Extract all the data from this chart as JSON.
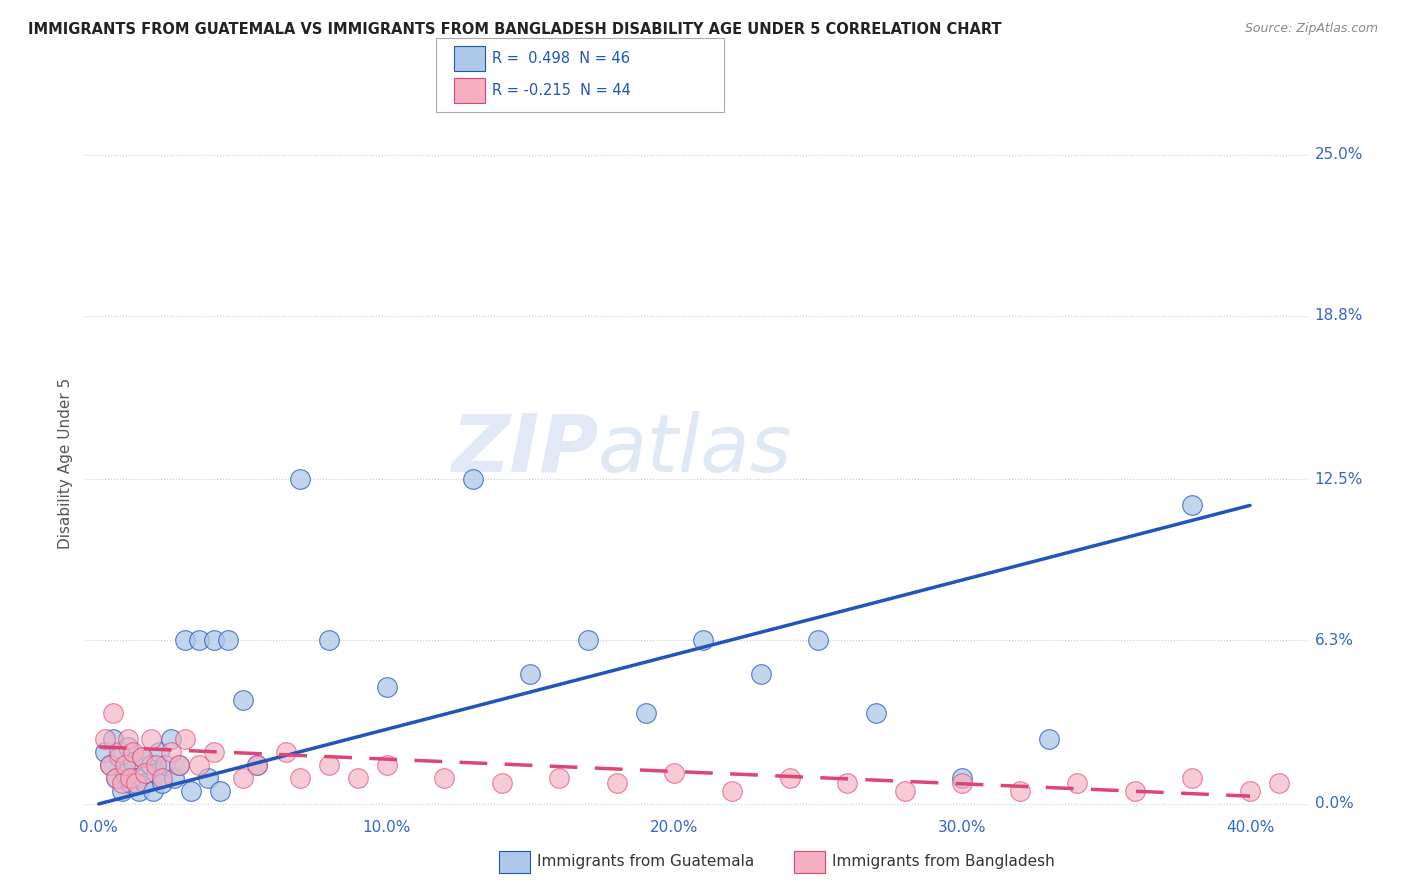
{
  "title": "IMMIGRANTS FROM GUATEMALA VS IMMIGRANTS FROM BANGLADESH DISABILITY AGE UNDER 5 CORRELATION CHART",
  "source": "Source: ZipAtlas.com",
  "ylabel": "Disability Age Under 5",
  "xlabel_ticks": [
    "0.0%",
    "10.0%",
    "20.0%",
    "30.0%",
    "40.0%"
  ],
  "xlabel_vals": [
    0.0,
    0.1,
    0.2,
    0.3,
    0.4
  ],
  "ylabel_ticks_right": [
    "0.0%",
    "6.3%",
    "12.5%",
    "18.8%",
    "25.0%"
  ],
  "ylabel_vals": [
    0.0,
    0.063,
    0.125,
    0.188,
    0.25
  ],
  "xlim": [
    -0.005,
    0.42
  ],
  "ylim": [
    -0.003,
    0.265
  ],
  "r_guatemala": 0.498,
  "n_guatemala": 46,
  "r_bangladesh": -0.215,
  "n_bangladesh": 44,
  "legend_label_1": "Immigrants from Guatemala",
  "legend_label_2": "Immigrants from Bangladesh",
  "color_guatemala": "#adc8e8",
  "color_bangladesh": "#f4afc0",
  "line_color_guatemala": "#2255bb",
  "line_color_bangladesh": "#dd4477",
  "watermark_zip": "ZIP",
  "watermark_atlas": "atlas",
  "background_color": "#ffffff",
  "grid_color": "#cccccc",
  "title_color": "#222222",
  "axis_label_color": "#3366cc",
  "guatemala_points_x": [
    0.002,
    0.004,
    0.005,
    0.006,
    0.007,
    0.008,
    0.009,
    0.01,
    0.011,
    0.012,
    0.013,
    0.014,
    0.015,
    0.016,
    0.018,
    0.019,
    0.02,
    0.021,
    0.022,
    0.023,
    0.025,
    0.026,
    0.028,
    0.03,
    0.032,
    0.035,
    0.038,
    0.04,
    0.042,
    0.045,
    0.05,
    0.055,
    0.07,
    0.08,
    0.1,
    0.13,
    0.15,
    0.17,
    0.19,
    0.21,
    0.23,
    0.25,
    0.27,
    0.3,
    0.33,
    0.38
  ],
  "guatemala_points_y": [
    0.02,
    0.015,
    0.025,
    0.01,
    0.018,
    0.005,
    0.012,
    0.022,
    0.008,
    0.016,
    0.01,
    0.005,
    0.018,
    0.008,
    0.015,
    0.005,
    0.012,
    0.02,
    0.008,
    0.015,
    0.025,
    0.01,
    0.015,
    0.063,
    0.005,
    0.063,
    0.01,
    0.063,
    0.005,
    0.063,
    0.04,
    0.015,
    0.125,
    0.063,
    0.045,
    0.125,
    0.05,
    0.063,
    0.035,
    0.063,
    0.05,
    0.063,
    0.035,
    0.01,
    0.025,
    0.115
  ],
  "bangladesh_points_x": [
    0.002,
    0.004,
    0.005,
    0.006,
    0.007,
    0.008,
    0.009,
    0.01,
    0.011,
    0.012,
    0.013,
    0.015,
    0.016,
    0.018,
    0.02,
    0.022,
    0.025,
    0.028,
    0.03,
    0.035,
    0.04,
    0.05,
    0.055,
    0.065,
    0.07,
    0.08,
    0.09,
    0.1,
    0.12,
    0.14,
    0.16,
    0.18,
    0.2,
    0.22,
    0.24,
    0.26,
    0.28,
    0.3,
    0.32,
    0.34,
    0.36,
    0.38,
    0.4,
    0.41
  ],
  "bangladesh_points_y": [
    0.025,
    0.015,
    0.035,
    0.01,
    0.02,
    0.008,
    0.015,
    0.025,
    0.01,
    0.02,
    0.008,
    0.018,
    0.012,
    0.025,
    0.015,
    0.01,
    0.02,
    0.015,
    0.025,
    0.015,
    0.02,
    0.01,
    0.015,
    0.02,
    0.01,
    0.015,
    0.01,
    0.015,
    0.01,
    0.008,
    0.01,
    0.008,
    0.012,
    0.005,
    0.01,
    0.008,
    0.005,
    0.008,
    0.005,
    0.008,
    0.005,
    0.01,
    0.005,
    0.008
  ],
  "blue_line_x": [
    0.0,
    0.4
  ],
  "blue_line_y": [
    0.0,
    0.115
  ],
  "pink_line_x": [
    0.0,
    0.4
  ],
  "pink_line_y": [
    0.022,
    0.003
  ]
}
